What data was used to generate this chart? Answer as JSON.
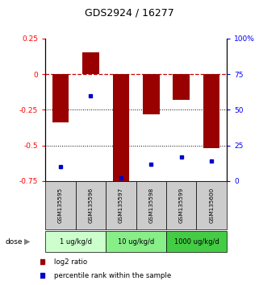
{
  "title": "GDS2924 / 16277",
  "samples": [
    "GSM135595",
    "GSM135596",
    "GSM135597",
    "GSM135598",
    "GSM135599",
    "GSM135600"
  ],
  "log2_ratio": [
    -0.34,
    0.15,
    -0.76,
    -0.28,
    -0.18,
    -0.52
  ],
  "percentile_rank": [
    10,
    60,
    2,
    12,
    17,
    14
  ],
  "dose_groups": [
    {
      "label": "1 ug/kg/d",
      "samples": [
        0,
        1
      ],
      "color": "#ccffcc"
    },
    {
      "label": "10 ug/kg/d",
      "samples": [
        2,
        3
      ],
      "color": "#88ee88"
    },
    {
      "label": "1000 ug/kg/d",
      "samples": [
        4,
        5
      ],
      "color": "#44cc44"
    }
  ],
  "bar_color": "#990000",
  "dot_color": "#0000cc",
  "left_ylim": [
    -0.75,
    0.25
  ],
  "left_yticks": [
    -0.75,
    -0.5,
    -0.25,
    0.0,
    0.25
  ],
  "right_ylim": [
    0,
    100
  ],
  "right_yticks": [
    0,
    25,
    50,
    75,
    100
  ],
  "hline_color": "#cc0000",
  "sample_bg_color": "#cccccc",
  "legend_red_label": "log2 ratio",
  "legend_blue_label": "percentile rank within the sample",
  "dose_label": "dose"
}
